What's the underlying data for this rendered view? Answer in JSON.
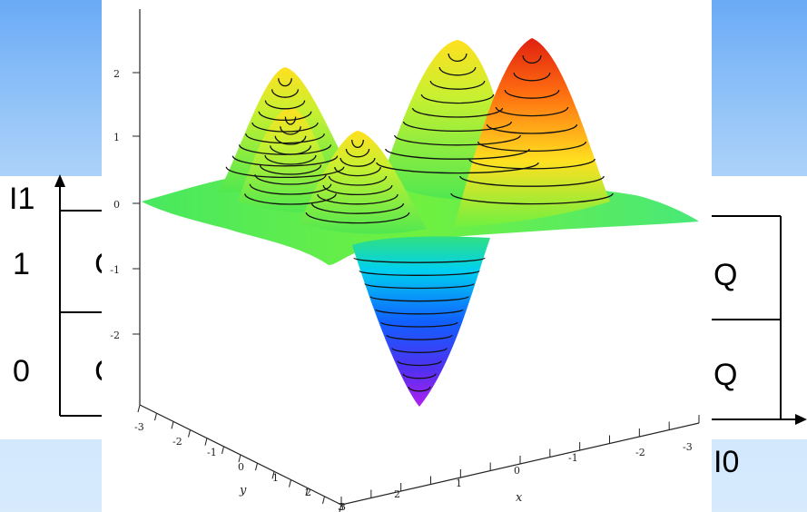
{
  "slide": {
    "left_diagram": {
      "input_axis_label": "I1",
      "row_labels": [
        "1",
        "0"
      ],
      "cell_labels": [
        "C",
        "C"
      ]
    },
    "right_diagram": {
      "input_axis_label": "I0",
      "cell_labels": [
        "Q",
        "Q"
      ]
    }
  },
  "plot3d": {
    "z_ticks": [
      "2",
      "1",
      "0",
      "-1",
      "-2"
    ],
    "y_ticks": [
      "-3",
      "-2",
      "-1",
      "0",
      "1",
      "2",
      "3"
    ],
    "x_ticks": [
      "3",
      "2",
      "1",
      "0",
      "-1",
      "-2",
      "-3"
    ],
    "y_label": "y",
    "x_label": "x",
    "colormap": [
      "#a020f0",
      "#3040ff",
      "#00c8ff",
      "#30e080",
      "#80ff30",
      "#ffe020",
      "#ff7010",
      "#e02010"
    ]
  }
}
